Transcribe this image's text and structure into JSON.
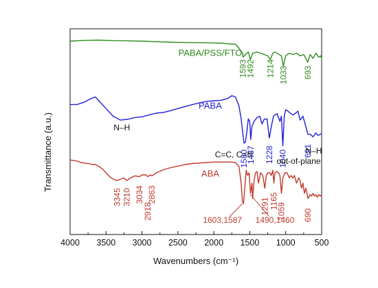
{
  "chart_data": {
    "type": "line",
    "xlabel": "Wavenumbers (cm⁻¹)",
    "ylabel": "Transmittance (a.u.)",
    "xlim": [
      4000,
      500
    ],
    "x_ticks": [
      4000,
      3500,
      3000,
      2500,
      2000,
      1500,
      1000,
      500
    ],
    "x_axis_reversed": true,
    "grid": false,
    "series": [
      {
        "name": "PABA/PSS/FTO",
        "color": "#2e8b1e",
        "points": [
          [
            4000,
            0.952
          ],
          [
            3800,
            0.955
          ],
          [
            3600,
            0.956
          ],
          [
            3400,
            0.954
          ],
          [
            3200,
            0.953
          ],
          [
            3000,
            0.952
          ],
          [
            2800,
            0.95
          ],
          [
            2600,
            0.948
          ],
          [
            2400,
            0.947
          ],
          [
            2200,
            0.946
          ],
          [
            2000,
            0.945
          ],
          [
            1900,
            0.944
          ],
          [
            1800,
            0.942
          ],
          [
            1700,
            0.94
          ],
          [
            1650,
            0.925
          ],
          [
            1600,
            0.905
          ],
          [
            1593,
            0.89
          ],
          [
            1560,
            0.9
          ],
          [
            1520,
            0.91
          ],
          [
            1492,
            0.88
          ],
          [
            1460,
            0.905
          ],
          [
            1400,
            0.91
          ],
          [
            1350,
            0.905
          ],
          [
            1300,
            0.9
          ],
          [
            1250,
            0.895
          ],
          [
            1214,
            0.88
          ],
          [
            1180,
            0.905
          ],
          [
            1150,
            0.91
          ],
          [
            1100,
            0.902
          ],
          [
            1060,
            0.895
          ],
          [
            1033,
            0.855
          ],
          [
            1000,
            0.895
          ],
          [
            950,
            0.905
          ],
          [
            900,
            0.9
          ],
          [
            850,
            0.905
          ],
          [
            800,
            0.895
          ],
          [
            750,
            0.9
          ],
          [
            720,
            0.885
          ],
          [
            693,
            0.87
          ],
          [
            660,
            0.9
          ],
          [
            620,
            0.885
          ],
          [
            580,
            0.905
          ],
          [
            540,
            0.89
          ],
          [
            510,
            0.895
          ],
          [
            500,
            0.88
          ]
        ]
      },
      {
        "name": "PABA",
        "color": "#1f1fd6",
        "points": [
          [
            4000,
            0.705
          ],
          [
            3900,
            0.706
          ],
          [
            3800,
            0.715
          ],
          [
            3700,
            0.73
          ],
          [
            3650,
            0.735
          ],
          [
            3600,
            0.72
          ],
          [
            3500,
            0.69
          ],
          [
            3400,
            0.66
          ],
          [
            3300,
            0.645
          ],
          [
            3200,
            0.648
          ],
          [
            3100,
            0.655
          ],
          [
            3000,
            0.658
          ],
          [
            2900,
            0.665
          ],
          [
            2800,
            0.672
          ],
          [
            2700,
            0.675
          ],
          [
            2600,
            0.682
          ],
          [
            2500,
            0.69
          ],
          [
            2400,
            0.698
          ],
          [
            2300,
            0.705
          ],
          [
            2200,
            0.712
          ],
          [
            2100,
            0.718
          ],
          [
            2000,
            0.72
          ],
          [
            1900,
            0.722
          ],
          [
            1800,
            0.73
          ],
          [
            1750,
            0.74
          ],
          [
            1700,
            0.735
          ],
          [
            1650,
            0.7
          ],
          [
            1620,
            0.65
          ],
          [
            1600,
            0.6
          ],
          [
            1580,
            0.555
          ],
          [
            1560,
            0.56
          ],
          [
            1540,
            0.6
          ],
          [
            1520,
            0.65
          ],
          [
            1500,
            0.64
          ],
          [
            1487,
            0.57
          ],
          [
            1470,
            0.62
          ],
          [
            1440,
            0.64
          ],
          [
            1400,
            0.655
          ],
          [
            1360,
            0.66
          ],
          [
            1330,
            0.63
          ],
          [
            1300,
            0.648
          ],
          [
            1260,
            0.65
          ],
          [
            1228,
            0.575
          ],
          [
            1200,
            0.62
          ],
          [
            1170,
            0.66
          ],
          [
            1150,
            0.665
          ],
          [
            1120,
            0.67
          ],
          [
            1080,
            0.64
          ],
          [
            1060,
            0.66
          ],
          [
            1040,
            0.545
          ],
          [
            1020,
            0.66
          ],
          [
            1000,
            0.685
          ],
          [
            970,
            0.68
          ],
          [
            950,
            0.675
          ],
          [
            900,
            0.665
          ],
          [
            870,
            0.67
          ],
          [
            830,
            0.68
          ],
          [
            800,
            0.645
          ],
          [
            760,
            0.66
          ],
          [
            720,
            0.62
          ],
          [
            691,
            0.59
          ],
          [
            660,
            0.59
          ],
          [
            620,
            0.58
          ],
          [
            580,
            0.595
          ],
          [
            550,
            0.585
          ],
          [
            520,
            0.59
          ],
          [
            500,
            0.592
          ]
        ]
      },
      {
        "name": "ABA",
        "color": "#c0392b",
        "points": [
          [
            4000,
            0.49
          ],
          [
            3950,
            0.488
          ],
          [
            3900,
            0.485
          ],
          [
            3850,
            0.48
          ],
          [
            3800,
            0.478
          ],
          [
            3750,
            0.476
          ],
          [
            3700,
            0.473
          ],
          [
            3650,
            0.472
          ],
          [
            3600,
            0.465
          ],
          [
            3550,
            0.455
          ],
          [
            3500,
            0.44
          ],
          [
            3450,
            0.425
          ],
          [
            3400,
            0.415
          ],
          [
            3345,
            0.41
          ],
          [
            3300,
            0.415
          ],
          [
            3250,
            0.42
          ],
          [
            3210,
            0.41
          ],
          [
            3150,
            0.422
          ],
          [
            3100,
            0.428
          ],
          [
            3034,
            0.425
          ],
          [
            3000,
            0.432
          ],
          [
            2950,
            0.432
          ],
          [
            2918,
            0.425
          ],
          [
            2880,
            0.432
          ],
          [
            2863,
            0.428
          ],
          [
            2800,
            0.44
          ],
          [
            2700,
            0.452
          ],
          [
            2600,
            0.46
          ],
          [
            2500,
            0.466
          ],
          [
            2400,
            0.472
          ],
          [
            2300,
            0.476
          ],
          [
            2200,
            0.478
          ],
          [
            2100,
            0.48
          ],
          [
            2000,
            0.482
          ],
          [
            1900,
            0.482
          ],
          [
            1800,
            0.482
          ],
          [
            1750,
            0.482
          ],
          [
            1700,
            0.48
          ],
          [
            1650,
            0.465
          ],
          [
            1620,
            0.4
          ],
          [
            1603,
            0.33
          ],
          [
            1587,
            0.32
          ],
          [
            1570,
            0.38
          ],
          [
            1550,
            0.45
          ],
          [
            1530,
            0.43
          ],
          [
            1510,
            0.44
          ],
          [
            1490,
            0.36
          ],
          [
            1470,
            0.4
          ],
          [
            1460,
            0.34
          ],
          [
            1440,
            0.41
          ],
          [
            1420,
            0.44
          ],
          [
            1400,
            0.445
          ],
          [
            1380,
            0.4
          ],
          [
            1350,
            0.44
          ],
          [
            1320,
            0.43
          ],
          [
            1291,
            0.38
          ],
          [
            1270,
            0.43
          ],
          [
            1250,
            0.44
          ],
          [
            1220,
            0.44
          ],
          [
            1200,
            0.43
          ],
          [
            1180,
            0.45
          ],
          [
            1165,
            0.4
          ],
          [
            1150,
            0.44
          ],
          [
            1120,
            0.445
          ],
          [
            1100,
            0.44
          ],
          [
            1080,
            0.43
          ],
          [
            1059,
            0.36
          ],
          [
            1040,
            0.42
          ],
          [
            1010,
            0.44
          ],
          [
            980,
            0.44
          ],
          [
            950,
            0.42
          ],
          [
            930,
            0.43
          ],
          [
            900,
            0.42
          ],
          [
            880,
            0.43
          ],
          [
            850,
            0.4
          ],
          [
            820,
            0.42
          ],
          [
            800,
            0.41
          ],
          [
            780,
            0.38
          ],
          [
            760,
            0.4
          ],
          [
            740,
            0.36
          ],
          [
            720,
            0.38
          ],
          [
            690,
            0.34
          ],
          [
            660,
            0.355
          ],
          [
            640,
            0.35
          ],
          [
            620,
            0.36
          ],
          [
            600,
            0.35
          ],
          [
            580,
            0.355
          ],
          [
            560,
            0.345
          ],
          [
            540,
            0.355
          ],
          [
            520,
            0.35
          ],
          [
            500,
            0.355
          ]
        ]
      }
    ],
    "series_labels": [
      {
        "text": "PABA/PSS/FTO",
        "x": 2050,
        "y": 0.895,
        "color": "#2e8b1e"
      },
      {
        "text": "PABA",
        "x": 2050,
        "y": 0.69,
        "color": "#1f1fd6"
      },
      {
        "text": "ABA",
        "x": 2050,
        "y": 0.425,
        "color": "#c0392b"
      }
    ],
    "annotations": [
      {
        "text": "1593",
        "x": 1593,
        "y": 0.845,
        "rotate": true,
        "color": "#2e8b1e"
      },
      {
        "text": "1492",
        "x": 1492,
        "y": 0.845,
        "rotate": true,
        "color": "#2e8b1e"
      },
      {
        "text": "1214",
        "x": 1214,
        "y": 0.845,
        "rotate": true,
        "color": "#2e8b1e"
      },
      {
        "text": "1033",
        "x": 1033,
        "y": 0.82,
        "rotate": true,
        "color": "#2e8b1e"
      },
      {
        "text": "693",
        "x": 693,
        "y": 0.83,
        "rotate": true,
        "color": "#2e8b1e"
      },
      {
        "text": "1580",
        "x": 1580,
        "y": 0.495,
        "rotate": true,
        "color": "#1f1fd6"
      },
      {
        "text": "1487",
        "x": 1487,
        "y": 0.51,
        "rotate": true,
        "color": "#1f1fd6"
      },
      {
        "text": "1228",
        "x": 1228,
        "y": 0.51,
        "rotate": true,
        "color": "#1f1fd6"
      },
      {
        "text": "1040",
        "x": 1040,
        "y": 0.495,
        "rotate": true,
        "color": "#1f1fd6"
      },
      {
        "text": "691",
        "x": 691,
        "y": 0.525,
        "rotate": true,
        "color": "#1f1fd6"
      },
      {
        "text": "N–H",
        "x": 3280,
        "y": 0.605,
        "rotate": false,
        "color": "#111111"
      },
      {
        "text": "C=C, C=N",
        "x": 1720,
        "y": 0.5,
        "rotate": false,
        "color": "#111111"
      },
      {
        "text": "N–H",
        "x": 610,
        "y": 0.515,
        "rotate": false,
        "color": "#111111"
      },
      {
        "text": "out-of-plane",
        "x": 820,
        "y": 0.475,
        "rotate": false,
        "color": "#111111"
      },
      {
        "text": "3345",
        "x": 3345,
        "y": 0.345,
        "rotate": true,
        "color": "#c0392b"
      },
      {
        "text": "3210",
        "x": 3210,
        "y": 0.345,
        "rotate": true,
        "color": "#c0392b"
      },
      {
        "text": "3034",
        "x": 3034,
        "y": 0.355,
        "rotate": true,
        "color": "#c0392b"
      },
      {
        "text": "2918",
        "x": 2918,
        "y": 0.29,
        "rotate": true,
        "color": "#c0392b"
      },
      {
        "text": "2863",
        "x": 2863,
        "y": 0.355,
        "rotate": true,
        "color": "#c0392b"
      },
      {
        "text": "1603,1587",
        "x": 1880,
        "y": 0.245,
        "rotate": false,
        "color": "#c0392b"
      },
      {
        "text": "1490,1460",
        "x": 1150,
        "y": 0.245,
        "rotate": false,
        "color": "#c0392b"
      },
      {
        "text": "1291",
        "x": 1291,
        "y": 0.31,
        "rotate": true,
        "color": "#c0392b"
      },
      {
        "text": "1165",
        "x": 1165,
        "y": 0.33,
        "rotate": true,
        "color": "#c0392b"
      },
      {
        "text": "1059",
        "x": 1059,
        "y": 0.29,
        "rotate": true,
        "color": "#c0392b"
      },
      {
        "text": "690",
        "x": 690,
        "y": 0.275,
        "rotate": true,
        "color": "#c0392b"
      }
    ],
    "leader_lines": [
      {
        "x1": 1780,
        "y1": 0.27,
        "x2": 1603,
        "y2": 0.32,
        "color": "#c0392b"
      },
      {
        "x1": 1230,
        "y1": 0.27,
        "x2": 1490,
        "y2": 0.355,
        "color": "#c0392b"
      }
    ]
  }
}
